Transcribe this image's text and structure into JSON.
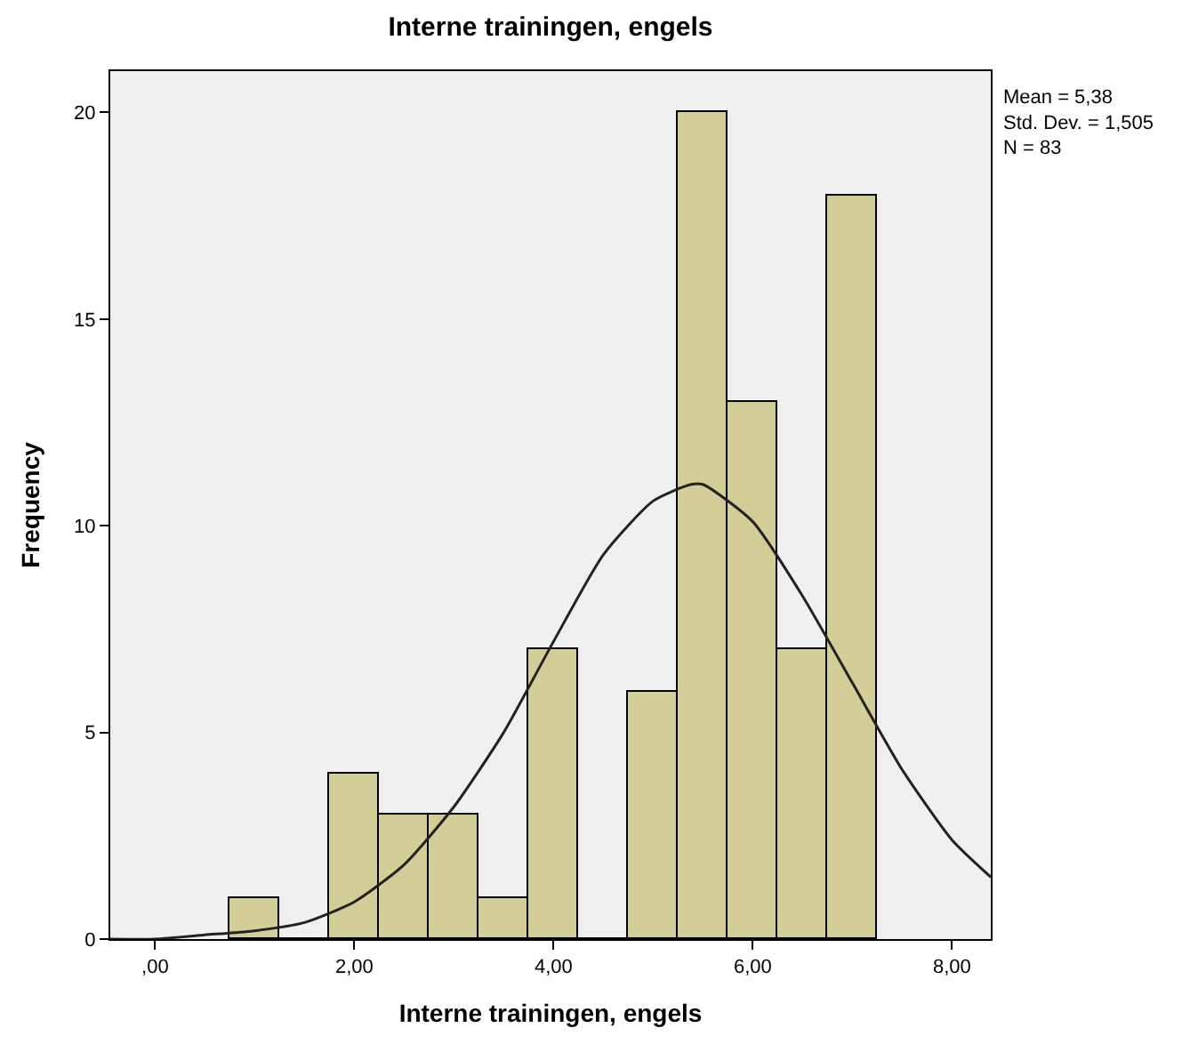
{
  "chart_data": {
    "type": "histogram",
    "title": "Interne trainingen, engels",
    "xlabel": "Interne trainingen, engels",
    "ylabel": "Frequency",
    "color": "#d3ce97",
    "bins": [
      0.75,
      1.25,
      1.75,
      2.25,
      2.75,
      3.25,
      3.75,
      4.25,
      4.75,
      5.25,
      5.75,
      6.25,
      6.75,
      7.25
    ],
    "values": [
      1,
      0,
      4,
      3,
      3,
      1,
      7,
      0,
      6,
      20,
      13,
      7,
      18
    ],
    "series": [
      {
        "type": "line",
        "color": "#222222",
        "x": [
          -0.45,
          0,
          0.5,
          1,
          1.5,
          2,
          2.5,
          3,
          3.5,
          4,
          4.5,
          5,
          5.38,
          5.5,
          6,
          6.5,
          7,
          7.5,
          8,
          8.39
        ],
        "values": [
          0.0,
          0.0,
          0.1,
          0.2,
          0.4,
          0.9,
          1.8,
          3.2,
          5.0,
          7.2,
          9.3,
          10.6,
          11.0,
          11.0,
          10.1,
          8.3,
          6.2,
          4.1,
          2.4,
          1.5
        ]
      }
    ],
    "xlim": [
      -0.45,
      8.39
    ],
    "ylim": [
      0,
      21.0
    ],
    "xticks": [
      {
        "value": 0,
        "label": ",00"
      },
      {
        "value": 2,
        "label": "2,00"
      },
      {
        "value": 4,
        "label": "4,00"
      },
      {
        "value": 6,
        "label": "6,00"
      },
      {
        "value": 8,
        "label": "8,00"
      }
    ],
    "yticks": [
      0,
      5,
      10,
      15,
      20
    ],
    "grid": false,
    "annotations": [
      "Mean = 5,38",
      "Std. Dev. = 1,505",
      "N = 83"
    ]
  }
}
